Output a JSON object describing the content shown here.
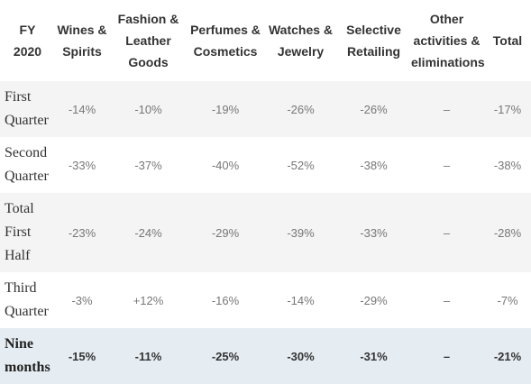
{
  "header": {
    "fy": "FY\n2020",
    "wines": "Wines &\nSpirits",
    "fashion": "Fashion &\nLeather\nGoods",
    "perfumes": "Perfumes &\nCosmetics",
    "watches": "Watches &\nJewelry",
    "selective": "Selective\nRetailing",
    "other": "Other\nactivities &\neliminations",
    "total": "Total"
  },
  "rows": [
    {
      "label": "First\nQuarter",
      "wines": "-14%",
      "fashion": "-10%",
      "perfumes": "-19%",
      "watches": "-26%",
      "selective": "-26%",
      "other": "–",
      "total": "-17%"
    },
    {
      "label": "Second\nQuarter",
      "wines": "-33%",
      "fashion": "-37%",
      "perfumes": "-40%",
      "watches": "-52%",
      "selective": "-38%",
      "other": "–",
      "total": "-38%"
    },
    {
      "label": "Total\nFirst\nHalf",
      "wines": "-23%",
      "fashion": "-24%",
      "perfumes": "-29%",
      "watches": "-39%",
      "selective": "-33%",
      "other": "–",
      "total": "-28%"
    },
    {
      "label": "Third\nQuarter",
      "wines": "-3%",
      "fashion": "+12%",
      "perfumes": "-16%",
      "watches": "-14%",
      "selective": "-29%",
      "other": "–",
      "total": "-7%"
    },
    {
      "label": "Nine\nmonths",
      "wines": "-15%",
      "fashion": "-11%",
      "perfumes": "-25%",
      "watches": "-30%",
      "selective": "-31%",
      "other": "–",
      "total": "-21%"
    }
  ]
}
